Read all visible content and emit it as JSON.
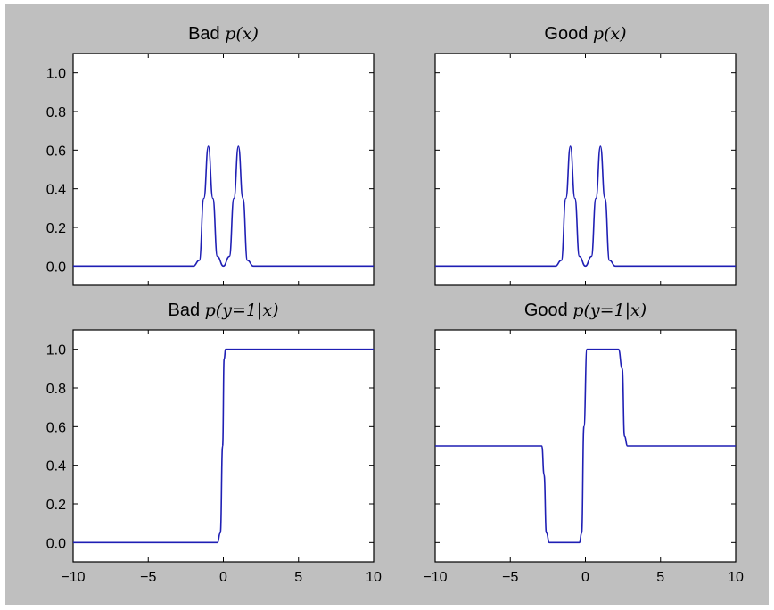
{
  "chart_data": [
    {
      "type": "line",
      "title_word": "Bad",
      "title_math": "p(x)",
      "xlim": [
        -10,
        10
      ],
      "ylim": [
        -0.1,
        1.1
      ],
      "xticks": [
        "−10",
        "−5",
        "0",
        "5",
        "10"
      ],
      "yticks": [
        "0.0",
        "0.2",
        "0.4",
        "0.6",
        "0.8",
        "1.0"
      ],
      "series": [
        {
          "x": [
            -10,
            -2,
            -1.6,
            -1.3,
            -1.0,
            -0.7,
            -0.4,
            0,
            0.4,
            0.7,
            1.0,
            1.3,
            1.6,
            2,
            10
          ],
          "y": [
            0,
            0,
            0.03,
            0.35,
            0.62,
            0.35,
            0.05,
            0.0,
            0.05,
            0.35,
            0.62,
            0.35,
            0.03,
            0,
            0
          ]
        }
      ]
    },
    {
      "type": "line",
      "title_word": "Good",
      "title_math": "p(x)",
      "xlim": [
        -10,
        10
      ],
      "ylim": [
        -0.1,
        1.1
      ],
      "xticks": [
        "−10",
        "−5",
        "0",
        "5",
        "10"
      ],
      "yticks": [
        "0.0",
        "0.2",
        "0.4",
        "0.6",
        "0.8",
        "1.0"
      ],
      "series": [
        {
          "x": [
            -10,
            -2,
            -1.6,
            -1.3,
            -1.0,
            -0.7,
            -0.4,
            0,
            0.4,
            0.7,
            1.0,
            1.3,
            1.6,
            2,
            10
          ],
          "y": [
            0,
            0,
            0.03,
            0.35,
            0.62,
            0.35,
            0.05,
            0.0,
            0.05,
            0.35,
            0.62,
            0.35,
            0.03,
            0,
            0
          ]
        }
      ]
    },
    {
      "type": "line",
      "title_word": "Bad",
      "title_math": "p(y=1|x)",
      "xlim": [
        -10,
        10
      ],
      "ylim": [
        -0.1,
        1.1
      ],
      "xticks": [
        "−10",
        "−5",
        "0",
        "5",
        "10"
      ],
      "yticks": [
        "0.0",
        "0.2",
        "0.4",
        "0.6",
        "0.8",
        "1.0"
      ],
      "series": [
        {
          "x": [
            -10,
            -0.4,
            -0.2,
            -0.05,
            0.05,
            0.15,
            0.3,
            10
          ],
          "y": [
            0,
            0,
            0.05,
            0.5,
            0.95,
            1.0,
            1.0,
            1.0
          ]
        }
      ]
    },
    {
      "type": "line",
      "title_word": "Good",
      "title_math": "p(y=1|x)",
      "xlim": [
        -10,
        10
      ],
      "ylim": [
        -0.1,
        1.1
      ],
      "xticks": [
        "−10",
        "−5",
        "0",
        "5",
        "10"
      ],
      "yticks": [
        "0.0",
        "0.2",
        "0.4",
        "0.6",
        "0.8",
        "1.0"
      ],
      "series": [
        {
          "x": [
            -10,
            -2.9,
            -2.75,
            -2.6,
            -2.4,
            -0.4,
            -0.25,
            -0.1,
            0.1,
            2.2,
            2.45,
            2.6,
            2.8,
            10
          ],
          "y": [
            0.5,
            0.5,
            0.35,
            0.05,
            0.0,
            0.0,
            0.05,
            0.6,
            1.0,
            1.0,
            0.9,
            0.55,
            0.5,
            0.5
          ]
        }
      ]
    }
  ]
}
